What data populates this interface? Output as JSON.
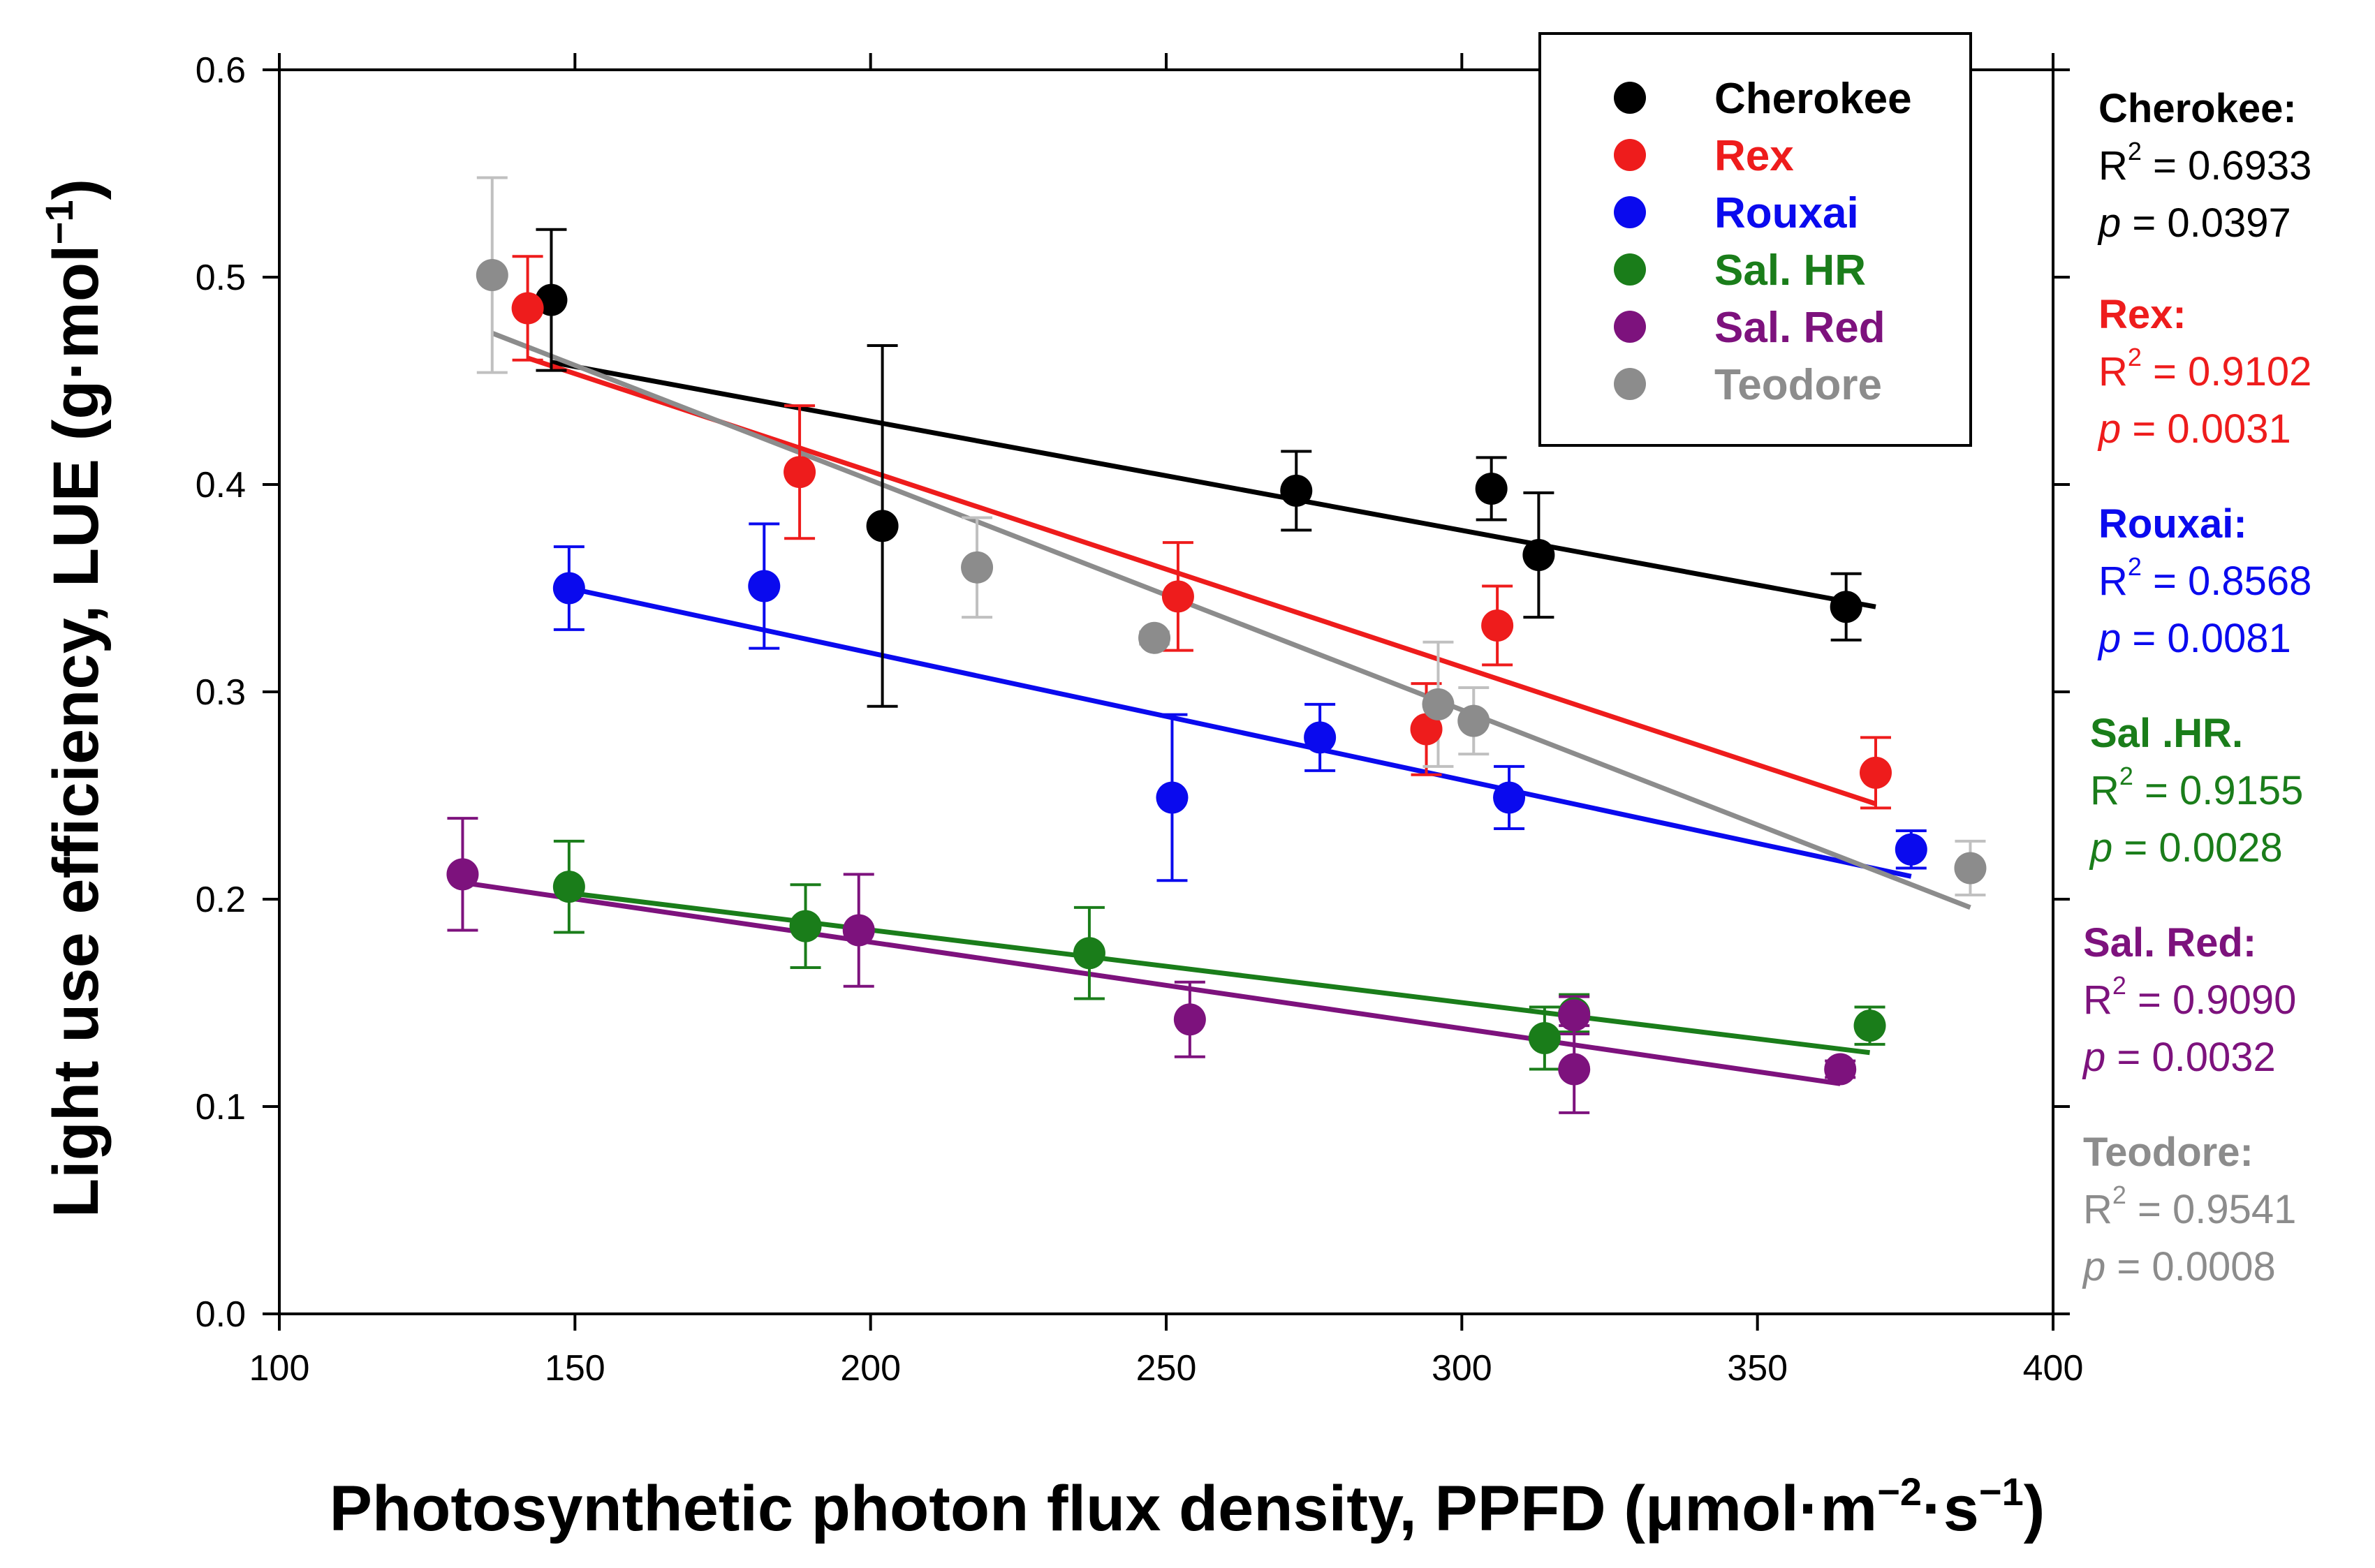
{
  "chart_data": {
    "type": "scatter",
    "xlabel": {
      "main": "Photosynthetic photon flux density, PPFD (",
      "unit_a": "μmol",
      "dot": "·",
      "unit_b": "m",
      "sup_b": "−2",
      "unit_c": "s",
      "sup_c": "−1",
      "close": ")"
    },
    "ylabel": {
      "main": "Light use efficiency, LUE (g",
      "dot": "·",
      "unit": "mol",
      "sup": "−1",
      "close": ")"
    },
    "xlim": [
      100,
      400
    ],
    "ylim": [
      0.0,
      0.6
    ],
    "x_ticks": [
      100,
      150,
      200,
      250,
      300,
      350,
      400
    ],
    "y_ticks": [
      0.0,
      0.1,
      0.2,
      0.3,
      0.4,
      0.5,
      0.6
    ],
    "x_tick_labels": [
      "100",
      "150",
      "200",
      "250",
      "300",
      "350",
      "400"
    ],
    "y_tick_labels": [
      "0.0",
      "0.1",
      "0.2",
      "0.3",
      "0.4",
      "0.5",
      "0.6"
    ],
    "grid": false,
    "legend_position": "top-right",
    "series": [
      {
        "name": "Cherokee",
        "color": "#000000",
        "error_color": "#000000",
        "points": [
          {
            "x": 146,
            "y": 0.489,
            "err": 0.034
          },
          {
            "x": 202,
            "y": 0.38,
            "err": 0.087
          },
          {
            "x": 272,
            "y": 0.397,
            "err": 0.019
          },
          {
            "x": 305,
            "y": 0.398,
            "err": 0.015
          },
          {
            "x": 313,
            "y": 0.366,
            "err": 0.03
          },
          {
            "x": 365,
            "y": 0.341,
            "err": 0.016
          }
        ],
        "fit": {
          "x1": 146,
          "y1": 0.459,
          "x2": 370,
          "y2": 0.341
        },
        "stats": {
          "head": "Cherokee:",
          "r2_label": "R",
          "r2_sup": "2",
          "r2_value": "= 0.6933",
          "p_label": "p",
          "p_value": "= 0.0397"
        }
      },
      {
        "name": "Rex",
        "color": "#ee1c1c",
        "error_color": "#ee1c1c",
        "points": [
          {
            "x": 142,
            "y": 0.485,
            "err": 0.025
          },
          {
            "x": 188,
            "y": 0.406,
            "err": 0.032
          },
          {
            "x": 252,
            "y": 0.346,
            "err": 0.026
          },
          {
            "x": 294,
            "y": 0.282,
            "err": 0.022
          },
          {
            "x": 306,
            "y": 0.332,
            "err": 0.019
          },
          {
            "x": 370,
            "y": 0.261,
            "err": 0.017
          }
        ],
        "fit": {
          "x1": 142,
          "y1": 0.461,
          "x2": 370,
          "y2": 0.246
        },
        "stats": {
          "head": "Rex:",
          "r2_label": "R",
          "r2_sup": "2",
          "r2_value": "= 0.9102",
          "p_label": "p",
          "p_value": "= 0.0031"
        }
      },
      {
        "name": "Rouxai",
        "color": "#0a0aee",
        "error_color": "#0a0aee",
        "points": [
          {
            "x": 149,
            "y": 0.35,
            "err": 0.02
          },
          {
            "x": 182,
            "y": 0.351,
            "err": 0.03
          },
          {
            "x": 251,
            "y": 0.249,
            "err": 0.04
          },
          {
            "x": 276,
            "y": 0.278,
            "err": 0.016
          },
          {
            "x": 308,
            "y": 0.249,
            "err": 0.015
          },
          {
            "x": 376,
            "y": 0.224,
            "err": 0.009
          }
        ],
        "fit": {
          "x1": 149,
          "y1": 0.35,
          "x2": 376,
          "y2": 0.211
        },
        "stats": {
          "head": "Rouxai:",
          "r2_label": "R",
          "r2_sup": "2",
          "r2_value": "= 0.8568",
          "p_label": "p",
          "p_value": "= 0.0081"
        }
      },
      {
        "name": "Sal. HR",
        "color": "#1a7d1a",
        "error_color": "#1a7d1a",
        "points": [
          {
            "x": 149,
            "y": 0.206,
            "err": 0.022
          },
          {
            "x": 189,
            "y": 0.187,
            "err": 0.02
          },
          {
            "x": 237,
            "y": 0.174,
            "err": 0.022
          },
          {
            "x": 314,
            "y": 0.133,
            "err": 0.015
          },
          {
            "x": 319,
            "y": 0.145,
            "err": 0.009
          },
          {
            "x": 369,
            "y": 0.139,
            "err": 0.009
          }
        ],
        "fit": {
          "x1": 149,
          "y1": 0.203,
          "x2": 369,
          "y2": 0.126
        },
        "stats": {
          "head": "Sal .HR.",
          "r2_label": "R",
          "r2_sup": "2",
          "r2_value": "= 0.9155",
          "p_label": "p",
          "p_value": "= 0.0028"
        }
      },
      {
        "name": "Sal. Red",
        "color": "#7d127d",
        "error_color": "#7d127d",
        "points": [
          {
            "x": 131,
            "y": 0.212,
            "err": 0.027
          },
          {
            "x": 198,
            "y": 0.185,
            "err": 0.027
          },
          {
            "x": 254,
            "y": 0.142,
            "err": 0.018
          },
          {
            "x": 319,
            "y": 0.144,
            "err": 0.009
          },
          {
            "x": 319,
            "y": 0.118,
            "err": 0.021
          },
          {
            "x": 364,
            "y": 0.118,
            "err": 0.004
          }
        ],
        "fit": {
          "x1": 131,
          "y1": 0.208,
          "x2": 364,
          "y2": 0.111
        },
        "stats": {
          "head": "Sal. Red:",
          "r2_label": "R",
          "r2_sup": "2",
          "r2_value": "= 0.9090",
          "p_label": "p",
          "p_value": "= 0.0032"
        }
      },
      {
        "name": "Teodore",
        "color": "#8c8c8c",
        "error_color": "#c0c0c0",
        "points": [
          {
            "x": 136,
            "y": 0.501,
            "err": 0.047
          },
          {
            "x": 218,
            "y": 0.36,
            "err": 0.024
          },
          {
            "x": 248,
            "y": 0.326,
            "err": 0.003
          },
          {
            "x": 296,
            "y": 0.294,
            "err": 0.03
          },
          {
            "x": 302,
            "y": 0.286,
            "err": 0.016
          },
          {
            "x": 386,
            "y": 0.215,
            "err": 0.013
          }
        ],
        "fit": {
          "x1": 136,
          "y1": 0.473,
          "x2": 386,
          "y2": 0.196
        },
        "stats": {
          "head": "Teodore:",
          "r2_label": "R",
          "r2_sup": "2",
          "r2_value": "= 0.9541",
          "p_label": "p",
          "p_value": "= 0.0008"
        }
      }
    ]
  }
}
